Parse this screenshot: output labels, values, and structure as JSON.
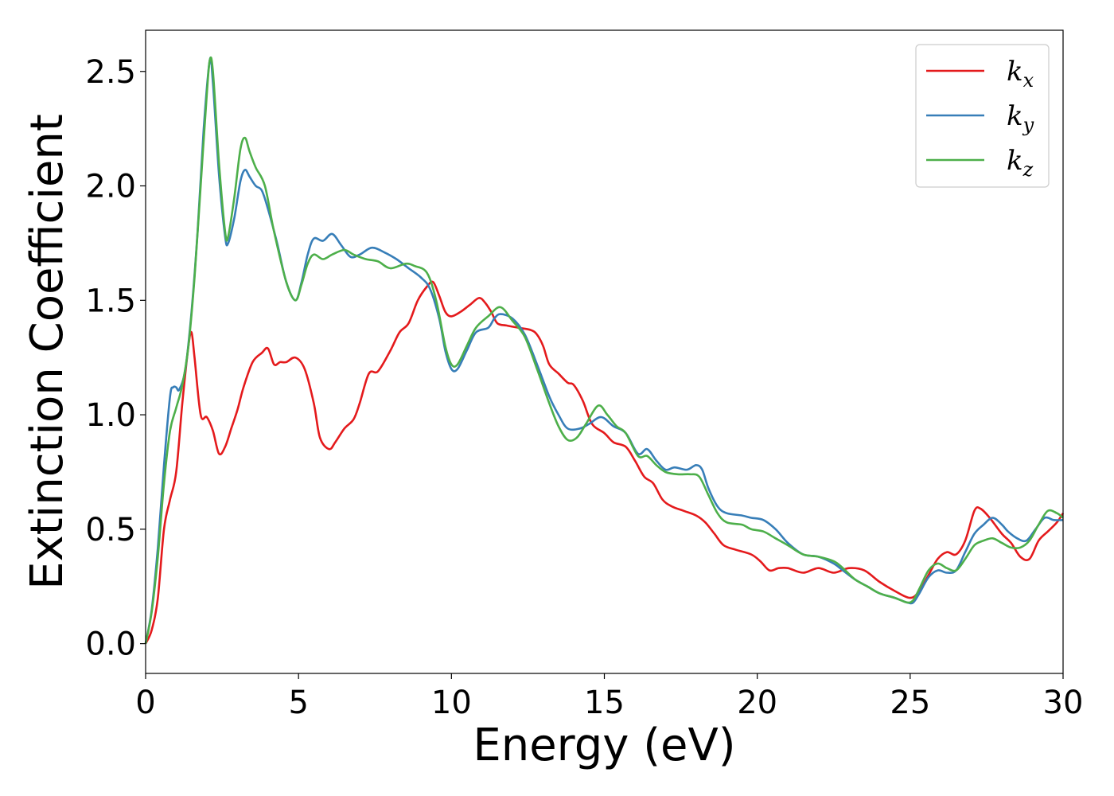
{
  "chart_data": {
    "type": "line",
    "xlabel": "Energy (eV)",
    "ylabel": "Extinction Coefficient",
    "xlim": [
      0,
      30
    ],
    "ylim": [
      -0.13,
      2.68
    ],
    "xticks": [
      0,
      5,
      10,
      15,
      20,
      25,
      30
    ],
    "yticks": [
      0.0,
      0.5,
      1.0,
      1.5,
      2.0,
      2.5
    ],
    "xtick_labels": [
      "0",
      "5",
      "10",
      "15",
      "20",
      "25",
      "30"
    ],
    "ytick_labels": [
      "0.0",
      "0.5",
      "1.0",
      "1.5",
      "2.0",
      "2.5"
    ],
    "grid": false,
    "legend_position": "top-right",
    "series": [
      {
        "name": "k_x",
        "label_base": "k",
        "label_sub": "x",
        "color": "#e41a1c",
        "points": [
          [
            0,
            0
          ],
          [
            0.2,
            0.06
          ],
          [
            0.4,
            0.2
          ],
          [
            0.6,
            0.5
          ],
          [
            0.8,
            0.63
          ],
          [
            1.0,
            0.75
          ],
          [
            1.2,
            1.05
          ],
          [
            1.4,
            1.3
          ],
          [
            1.5,
            1.36
          ],
          [
            1.6,
            1.25
          ],
          [
            1.8,
            1.0
          ],
          [
            2.0,
            0.99
          ],
          [
            2.2,
            0.93
          ],
          [
            2.4,
            0.83
          ],
          [
            2.6,
            0.86
          ],
          [
            2.8,
            0.94
          ],
          [
            3.0,
            1.02
          ],
          [
            3.2,
            1.12
          ],
          [
            3.5,
            1.23
          ],
          [
            3.8,
            1.27
          ],
          [
            4.0,
            1.29
          ],
          [
            4.2,
            1.22
          ],
          [
            4.4,
            1.23
          ],
          [
            4.6,
            1.23
          ],
          [
            4.9,
            1.25
          ],
          [
            5.2,
            1.2
          ],
          [
            5.5,
            1.05
          ],
          [
            5.7,
            0.9
          ],
          [
            6.0,
            0.85
          ],
          [
            6.2,
            0.88
          ],
          [
            6.5,
            0.94
          ],
          [
            6.8,
            0.98
          ],
          [
            7.0,
            1.05
          ],
          [
            7.3,
            1.18
          ],
          [
            7.6,
            1.19
          ],
          [
            8.0,
            1.28
          ],
          [
            8.3,
            1.36
          ],
          [
            8.6,
            1.4
          ],
          [
            8.9,
            1.5
          ],
          [
            9.2,
            1.56
          ],
          [
            9.4,
            1.58
          ],
          [
            9.6,
            1.52
          ],
          [
            9.8,
            1.45
          ],
          [
            10.0,
            1.43
          ],
          [
            10.3,
            1.45
          ],
          [
            10.6,
            1.48
          ],
          [
            10.9,
            1.51
          ],
          [
            11.1,
            1.49
          ],
          [
            11.3,
            1.45
          ],
          [
            11.5,
            1.4
          ],
          [
            11.8,
            1.39
          ],
          [
            12.2,
            1.38
          ],
          [
            12.6,
            1.37
          ],
          [
            12.8,
            1.35
          ],
          [
            13.0,
            1.3
          ],
          [
            13.2,
            1.22
          ],
          [
            13.5,
            1.18
          ],
          [
            13.8,
            1.14
          ],
          [
            14.0,
            1.13
          ],
          [
            14.3,
            1.06
          ],
          [
            14.6,
            0.96
          ],
          [
            15.0,
            0.92
          ],
          [
            15.3,
            0.88
          ],
          [
            15.7,
            0.86
          ],
          [
            16.0,
            0.8
          ],
          [
            16.3,
            0.73
          ],
          [
            16.6,
            0.7
          ],
          [
            16.9,
            0.63
          ],
          [
            17.2,
            0.6
          ],
          [
            17.6,
            0.58
          ],
          [
            18.0,
            0.56
          ],
          [
            18.3,
            0.53
          ],
          [
            18.6,
            0.48
          ],
          [
            18.9,
            0.43
          ],
          [
            19.3,
            0.41
          ],
          [
            19.8,
            0.39
          ],
          [
            20.1,
            0.36
          ],
          [
            20.4,
            0.32
          ],
          [
            20.7,
            0.33
          ],
          [
            21.0,
            0.33
          ],
          [
            21.5,
            0.31
          ],
          [
            22.0,
            0.33
          ],
          [
            22.5,
            0.31
          ],
          [
            23.0,
            0.33
          ],
          [
            23.5,
            0.32
          ],
          [
            24.0,
            0.27
          ],
          [
            24.5,
            0.23
          ],
          [
            25.0,
            0.2
          ],
          [
            25.3,
            0.23
          ],
          [
            25.6,
            0.3
          ],
          [
            25.9,
            0.37
          ],
          [
            26.2,
            0.4
          ],
          [
            26.5,
            0.39
          ],
          [
            26.8,
            0.45
          ],
          [
            27.1,
            0.58
          ],
          [
            27.3,
            0.59
          ],
          [
            27.6,
            0.55
          ],
          [
            28.0,
            0.48
          ],
          [
            28.3,
            0.44
          ],
          [
            28.6,
            0.38
          ],
          [
            28.9,
            0.37
          ],
          [
            29.2,
            0.45
          ],
          [
            29.5,
            0.49
          ],
          [
            29.8,
            0.53
          ],
          [
            30.0,
            0.57
          ]
        ]
      },
      {
        "name": "k_y",
        "label_base": "k",
        "label_sub": "y",
        "color": "#377eb8",
        "points": [
          [
            0,
            0
          ],
          [
            0.2,
            0.15
          ],
          [
            0.4,
            0.42
          ],
          [
            0.6,
            0.78
          ],
          [
            0.8,
            1.08
          ],
          [
            0.9,
            1.12
          ],
          [
            1.0,
            1.12
          ],
          [
            1.1,
            1.11
          ],
          [
            1.3,
            1.2
          ],
          [
            1.5,
            1.45
          ],
          [
            1.7,
            1.8
          ],
          [
            1.9,
            2.25
          ],
          [
            2.1,
            2.55
          ],
          [
            2.2,
            2.45
          ],
          [
            2.4,
            2.05
          ],
          [
            2.6,
            1.78
          ],
          [
            2.7,
            1.75
          ],
          [
            2.9,
            1.86
          ],
          [
            3.1,
            2.02
          ],
          [
            3.25,
            2.07
          ],
          [
            3.4,
            2.04
          ],
          [
            3.6,
            2.0
          ],
          [
            3.8,
            1.98
          ],
          [
            4.0,
            1.9
          ],
          [
            4.3,
            1.75
          ],
          [
            4.6,
            1.58
          ],
          [
            4.9,
            1.5
          ],
          [
            5.1,
            1.58
          ],
          [
            5.3,
            1.7
          ],
          [
            5.5,
            1.77
          ],
          [
            5.8,
            1.76
          ],
          [
            6.1,
            1.79
          ],
          [
            6.4,
            1.74
          ],
          [
            6.7,
            1.69
          ],
          [
            7.0,
            1.7
          ],
          [
            7.4,
            1.73
          ],
          [
            7.8,
            1.71
          ],
          [
            8.2,
            1.68
          ],
          [
            8.6,
            1.64
          ],
          [
            9.0,
            1.6
          ],
          [
            9.3,
            1.55
          ],
          [
            9.6,
            1.42
          ],
          [
            9.8,
            1.28
          ],
          [
            10.0,
            1.2
          ],
          [
            10.2,
            1.2
          ],
          [
            10.5,
            1.28
          ],
          [
            10.8,
            1.36
          ],
          [
            11.2,
            1.38
          ],
          [
            11.4,
            1.42
          ],
          [
            11.6,
            1.44
          ],
          [
            12.0,
            1.42
          ],
          [
            12.4,
            1.35
          ],
          [
            12.8,
            1.22
          ],
          [
            13.2,
            1.08
          ],
          [
            13.5,
            1.0
          ],
          [
            13.8,
            0.94
          ],
          [
            14.2,
            0.94
          ],
          [
            14.5,
            0.96
          ],
          [
            14.9,
            0.99
          ],
          [
            15.3,
            0.95
          ],
          [
            15.7,
            0.92
          ],
          [
            16.1,
            0.83
          ],
          [
            16.4,
            0.85
          ],
          [
            16.7,
            0.8
          ],
          [
            17.0,
            0.76
          ],
          [
            17.3,
            0.77
          ],
          [
            17.7,
            0.76
          ],
          [
            18.0,
            0.78
          ],
          [
            18.2,
            0.76
          ],
          [
            18.4,
            0.68
          ],
          [
            18.7,
            0.6
          ],
          [
            19.0,
            0.57
          ],
          [
            19.5,
            0.56
          ],
          [
            19.8,
            0.55
          ],
          [
            20.2,
            0.54
          ],
          [
            20.6,
            0.5
          ],
          [
            21.0,
            0.44
          ],
          [
            21.5,
            0.39
          ],
          [
            22.0,
            0.38
          ],
          [
            22.5,
            0.35
          ],
          [
            22.8,
            0.32
          ],
          [
            23.2,
            0.28
          ],
          [
            23.6,
            0.25
          ],
          [
            24.0,
            0.22
          ],
          [
            24.5,
            0.2
          ],
          [
            24.9,
            0.18
          ],
          [
            25.1,
            0.18
          ],
          [
            25.3,
            0.22
          ],
          [
            25.6,
            0.29
          ],
          [
            25.9,
            0.32
          ],
          [
            26.2,
            0.31
          ],
          [
            26.5,
            0.32
          ],
          [
            26.8,
            0.4
          ],
          [
            27.1,
            0.48
          ],
          [
            27.4,
            0.52
          ],
          [
            27.7,
            0.55
          ],
          [
            28.0,
            0.52
          ],
          [
            28.2,
            0.49
          ],
          [
            28.5,
            0.46
          ],
          [
            28.8,
            0.45
          ],
          [
            29.1,
            0.5
          ],
          [
            29.4,
            0.55
          ],
          [
            29.7,
            0.54
          ],
          [
            30.0,
            0.54
          ]
        ]
      },
      {
        "name": "k_z",
        "label_base": "k",
        "label_sub": "z",
        "color": "#4daf4a",
        "points": [
          [
            0,
            0
          ],
          [
            0.2,
            0.14
          ],
          [
            0.4,
            0.38
          ],
          [
            0.6,
            0.7
          ],
          [
            0.8,
            0.93
          ],
          [
            1.0,
            1.03
          ],
          [
            1.2,
            1.13
          ],
          [
            1.4,
            1.3
          ],
          [
            1.6,
            1.6
          ],
          [
            1.8,
            2.0
          ],
          [
            2.0,
            2.4
          ],
          [
            2.1,
            2.55
          ],
          [
            2.2,
            2.5
          ],
          [
            2.4,
            2.1
          ],
          [
            2.6,
            1.8
          ],
          [
            2.7,
            1.78
          ],
          [
            2.9,
            1.95
          ],
          [
            3.1,
            2.16
          ],
          [
            3.25,
            2.21
          ],
          [
            3.4,
            2.15
          ],
          [
            3.6,
            2.08
          ],
          [
            3.9,
            2.0
          ],
          [
            4.2,
            1.8
          ],
          [
            4.6,
            1.58
          ],
          [
            4.9,
            1.5
          ],
          [
            5.1,
            1.57
          ],
          [
            5.3,
            1.66
          ],
          [
            5.5,
            1.7
          ],
          [
            5.8,
            1.68
          ],
          [
            6.1,
            1.7
          ],
          [
            6.5,
            1.72
          ],
          [
            6.8,
            1.7
          ],
          [
            7.2,
            1.68
          ],
          [
            7.6,
            1.67
          ],
          [
            8.0,
            1.64
          ],
          [
            8.5,
            1.66
          ],
          [
            8.8,
            1.65
          ],
          [
            9.2,
            1.62
          ],
          [
            9.5,
            1.5
          ],
          [
            9.8,
            1.3
          ],
          [
            10.0,
            1.22
          ],
          [
            10.2,
            1.22
          ],
          [
            10.5,
            1.3
          ],
          [
            10.8,
            1.38
          ],
          [
            11.2,
            1.43
          ],
          [
            11.6,
            1.47
          ],
          [
            12.0,
            1.41
          ],
          [
            12.4,
            1.34
          ],
          [
            12.8,
            1.2
          ],
          [
            13.2,
            1.05
          ],
          [
            13.5,
            0.95
          ],
          [
            13.8,
            0.89
          ],
          [
            14.1,
            0.9
          ],
          [
            14.4,
            0.96
          ],
          [
            14.8,
            1.04
          ],
          [
            15.1,
            1.0
          ],
          [
            15.4,
            0.95
          ],
          [
            15.7,
            0.92
          ],
          [
            16.1,
            0.82
          ],
          [
            16.4,
            0.82
          ],
          [
            16.7,
            0.78
          ],
          [
            17.0,
            0.75
          ],
          [
            17.4,
            0.74
          ],
          [
            17.8,
            0.74
          ],
          [
            18.1,
            0.73
          ],
          [
            18.4,
            0.65
          ],
          [
            18.7,
            0.57
          ],
          [
            19.0,
            0.53
          ],
          [
            19.5,
            0.52
          ],
          [
            19.8,
            0.5
          ],
          [
            20.2,
            0.49
          ],
          [
            20.6,
            0.46
          ],
          [
            21.0,
            0.43
          ],
          [
            21.5,
            0.39
          ],
          [
            22.0,
            0.38
          ],
          [
            22.5,
            0.36
          ],
          [
            22.8,
            0.33
          ],
          [
            23.2,
            0.28
          ],
          [
            23.6,
            0.25
          ],
          [
            24.0,
            0.22
          ],
          [
            24.5,
            0.2
          ],
          [
            24.9,
            0.18
          ],
          [
            25.1,
            0.19
          ],
          [
            25.3,
            0.24
          ],
          [
            25.6,
            0.32
          ],
          [
            25.9,
            0.35
          ],
          [
            26.2,
            0.33
          ],
          [
            26.5,
            0.32
          ],
          [
            26.8,
            0.37
          ],
          [
            27.1,
            0.43
          ],
          [
            27.4,
            0.45
          ],
          [
            27.7,
            0.46
          ],
          [
            28.0,
            0.44
          ],
          [
            28.3,
            0.42
          ],
          [
            28.6,
            0.42
          ],
          [
            28.9,
            0.45
          ],
          [
            29.2,
            0.52
          ],
          [
            29.5,
            0.58
          ],
          [
            29.8,
            0.57
          ],
          [
            30.0,
            0.55
          ]
        ]
      }
    ]
  }
}
